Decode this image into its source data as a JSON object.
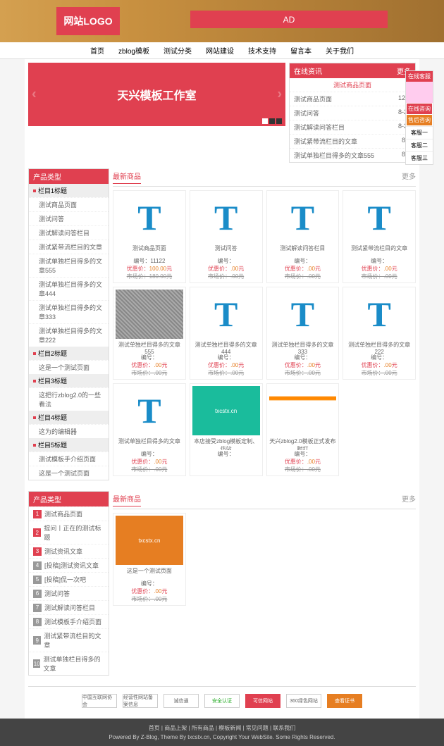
{
  "logo": "网站LOGO",
  "ad": "AD",
  "nav": [
    "首页",
    "zblog模板",
    "测试分类",
    "网站建设",
    "技术支持",
    "留言本",
    "关于我们"
  ],
  "hero": {
    "title": "天兴模板工作室"
  },
  "online_info": {
    "header": "在线资讯",
    "more": "更多",
    "sub": "测试商品页面",
    "items": [
      {
        "t": "测试商品页面",
        "d": "12-1"
      },
      {
        "t": "测试问答",
        "d": "8-21"
      },
      {
        "t": "测试解读问答栏目",
        "d": "8-20"
      },
      {
        "t": "测试紧带流栏目的文章",
        "d": "8-7"
      },
      {
        "t": "测试单独栏目得多的文章555",
        "d": "8-5"
      }
    ]
  },
  "cat_block": {
    "header": "产品类型",
    "groups": [
      {
        "h": "栏目1标题",
        "items": [
          "测试商品页面",
          "测试问答",
          "测试解读问答栏目",
          "测试紧带流栏目的文章",
          "测试单独栏目得多的文章555",
          "测试单独栏目得多的文章444",
          "测试单独栏目得多的文章333",
          "测试单独栏目得多的文章222"
        ]
      },
      {
        "h": "栏目2标题",
        "items": [
          "这是一个测试页面"
        ]
      },
      {
        "h": "栏目3标题",
        "items": [
          "这把行zblog2.0的一些看法"
        ]
      },
      {
        "h": "栏目4标题",
        "items": [
          "这为的编辑器"
        ]
      },
      {
        "h": "栏目5标题",
        "items": [
          "测试模板手介绍页面",
          "这是一个测试页面"
        ]
      }
    ]
  },
  "products1": {
    "header": "最新商品",
    "more": "更多",
    "items": [
      {
        "img": "t",
        "title": "测试商品页面",
        "code": "11122",
        "sale": "100.00",
        "market": "180.00"
      },
      {
        "img": "t",
        "title": "测试问答",
        "code": "",
        "sale": ".00",
        "market": ".00"
      },
      {
        "img": "t",
        "title": "测试解读问答栏目",
        "code": "",
        "sale": ".00",
        "market": ".00"
      },
      {
        "img": "t",
        "title": "测试紧带流栏目的文章",
        "code": "",
        "sale": ".00",
        "market": ".00"
      },
      {
        "img": "texture",
        "title": "测试单独栏目得多的文章555",
        "code": "",
        "sale": ".00",
        "market": ".00"
      },
      {
        "img": "t",
        "title": "测试单独栏目得多的文章444",
        "code": "",
        "sale": ".00",
        "market": ".00"
      },
      {
        "img": "t",
        "title": "测试单独栏目得多的文章333",
        "code": "",
        "sale": ".00",
        "market": ".00"
      },
      {
        "img": "t",
        "title": "测试单独栏目得多的文章222",
        "code": "",
        "sale": ".00",
        "market": ".00"
      },
      {
        "img": "t",
        "title": "测试单独栏目得多的文章",
        "code": "",
        "sale": ".00",
        "market": ".00"
      },
      {
        "img": "teal",
        "title": "本店接受zblog模板定制、仿站",
        "code": "",
        "sale": "",
        "market": ""
      },
      {
        "img": "screenshot",
        "title": "天兴zblog2.0模板正式发布 附打",
        "code": "",
        "sale": ".00",
        "market": ".00"
      },
      {
        "img": "",
        "title": "",
        "code": "",
        "sale": "",
        "market": ""
      }
    ]
  },
  "rank_block": {
    "header": "产品类型",
    "items": [
      "测试商品页面",
      "提问丨正在的测试标题",
      "测试资讯文章",
      "[投稿]测试资讯文章",
      "[投稿]侃一次吧",
      "测试问答",
      "测试解读问答栏目",
      "测试模板手介绍页面",
      "测试紧带流栏目的文章",
      "测试单独栏目得多的文章"
    ]
  },
  "products2": {
    "header": "最新商品",
    "more": "更多",
    "items": [
      {
        "img": "orange",
        "title": "这是一个测试页面",
        "code": "",
        "sale": ".00",
        "market": ".00"
      }
    ]
  },
  "badges": [
    "中国互联网协会",
    "经营性网站备案信息",
    "诚信通",
    "安全认证",
    "可信网站",
    "360绿色网站",
    "查看证书"
  ],
  "footer": {
    "nav": "首页 | 商品上架 | 所有商品 | 模板新闻 | 常见问题 | 联系我们",
    "copy": "Powered By Z-Blog, Theme By txcstx.cn, Copyright Your WebSite. Some Rights Reserved."
  },
  "float": {
    "header": "在线客服",
    "btn1": "在线咨询",
    "btn2": "售后咨询",
    "items": [
      "客服一",
      "客服二",
      "客服三"
    ]
  },
  "labels": {
    "code": "编号：",
    "sale": "优惠价：",
    "market": "市场价：",
    "yuan": "元"
  }
}
